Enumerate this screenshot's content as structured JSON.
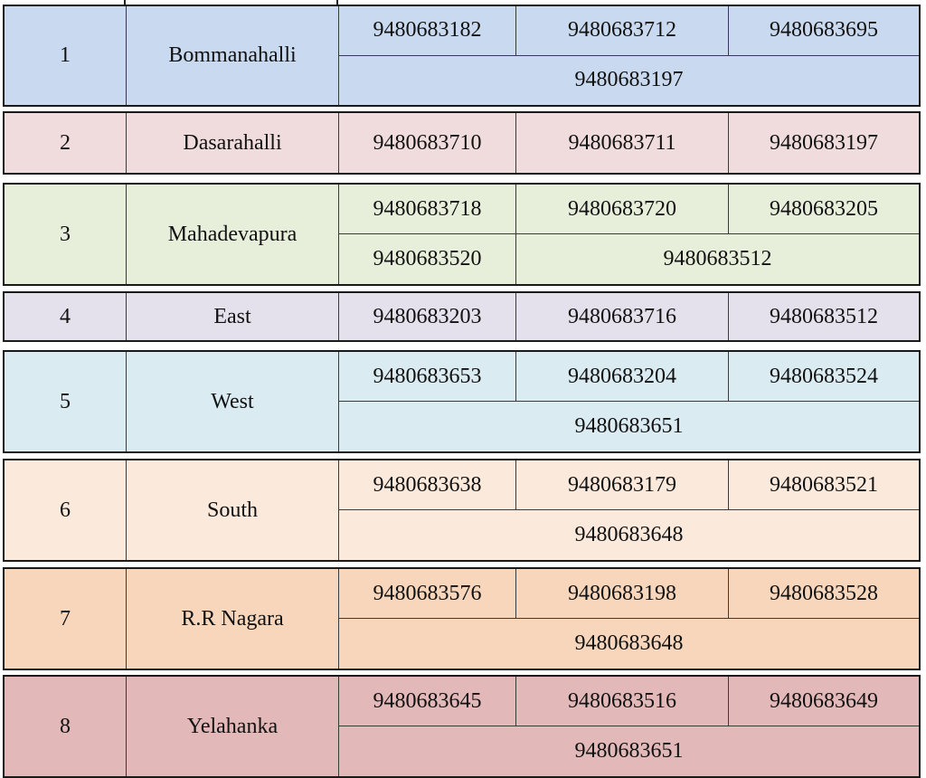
{
  "rows": [
    {
      "no": "1",
      "zone": "Bommanahalli",
      "color": "#c9d9ef",
      "phones": [
        "9480683182",
        "9480683712",
        "9480683695"
      ],
      "extra": [
        "9480683197"
      ]
    },
    {
      "no": "2",
      "zone": "Dasarahalli",
      "color": "#f0dcdc",
      "phones": [
        "9480683710",
        "9480683711",
        "9480683197"
      ],
      "extra": []
    },
    {
      "no": "3",
      "zone": "Mahadevapura",
      "color": "#e7efdb",
      "phones": [
        "9480683718",
        "9480683720",
        "9480683205"
      ],
      "extra": [
        "9480683520",
        "9480683512"
      ]
    },
    {
      "no": "4",
      "zone": "East",
      "color": "#e4e0ec",
      "phones": [
        "9480683203",
        "9480683716",
        "9480683512"
      ],
      "extra": []
    },
    {
      "no": "5",
      "zone": "West",
      "color": "#daebf2",
      "phones": [
        "9480683653",
        "9480683204",
        "9480683524"
      ],
      "extra": [
        "9480683651"
      ]
    },
    {
      "no": "6",
      "zone": "South",
      "color": "#fbe9dc",
      "phones": [
        "9480683638",
        "9480683179",
        "9480683521"
      ],
      "extra": [
        "9480683648"
      ]
    },
    {
      "no": "7",
      "zone": "R.R Nagara",
      "color": "#f7d6bb",
      "phones": [
        "9480683576",
        "9480683198",
        "9480683528"
      ],
      "extra": [
        "9480683648"
      ]
    },
    {
      "no": "8",
      "zone": "Yelahanka",
      "color": "#e2b8b8",
      "phones": [
        "9480683645",
        "9480683516",
        "9480683649"
      ],
      "extra": [
        "9480683651"
      ]
    }
  ]
}
